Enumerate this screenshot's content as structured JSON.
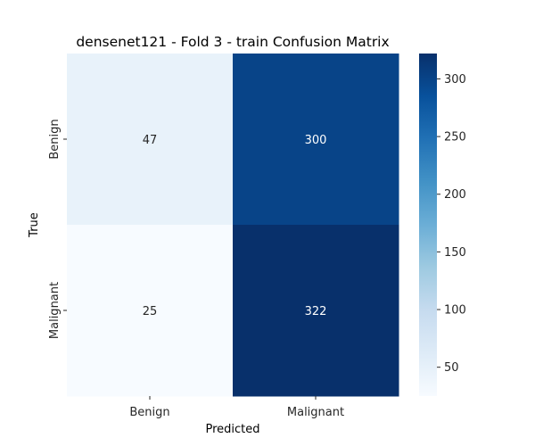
{
  "chart_data": {
    "type": "heatmap",
    "title": "densenet121 - Fold 3 - train Confusion Matrix",
    "xlabel": "Predicted",
    "ylabel": "True",
    "x_categories": [
      "Benign",
      "Malignant"
    ],
    "y_categories": [
      "Benign",
      "Malignant"
    ],
    "values": [
      [
        47,
        300
      ],
      [
        25,
        322
      ]
    ],
    "colormap": "Blues",
    "colorbar": {
      "vmin": 25,
      "vmax": 322,
      "ticks": [
        50,
        100,
        150,
        200,
        250,
        300
      ]
    },
    "grid": false,
    "legend": "none"
  }
}
